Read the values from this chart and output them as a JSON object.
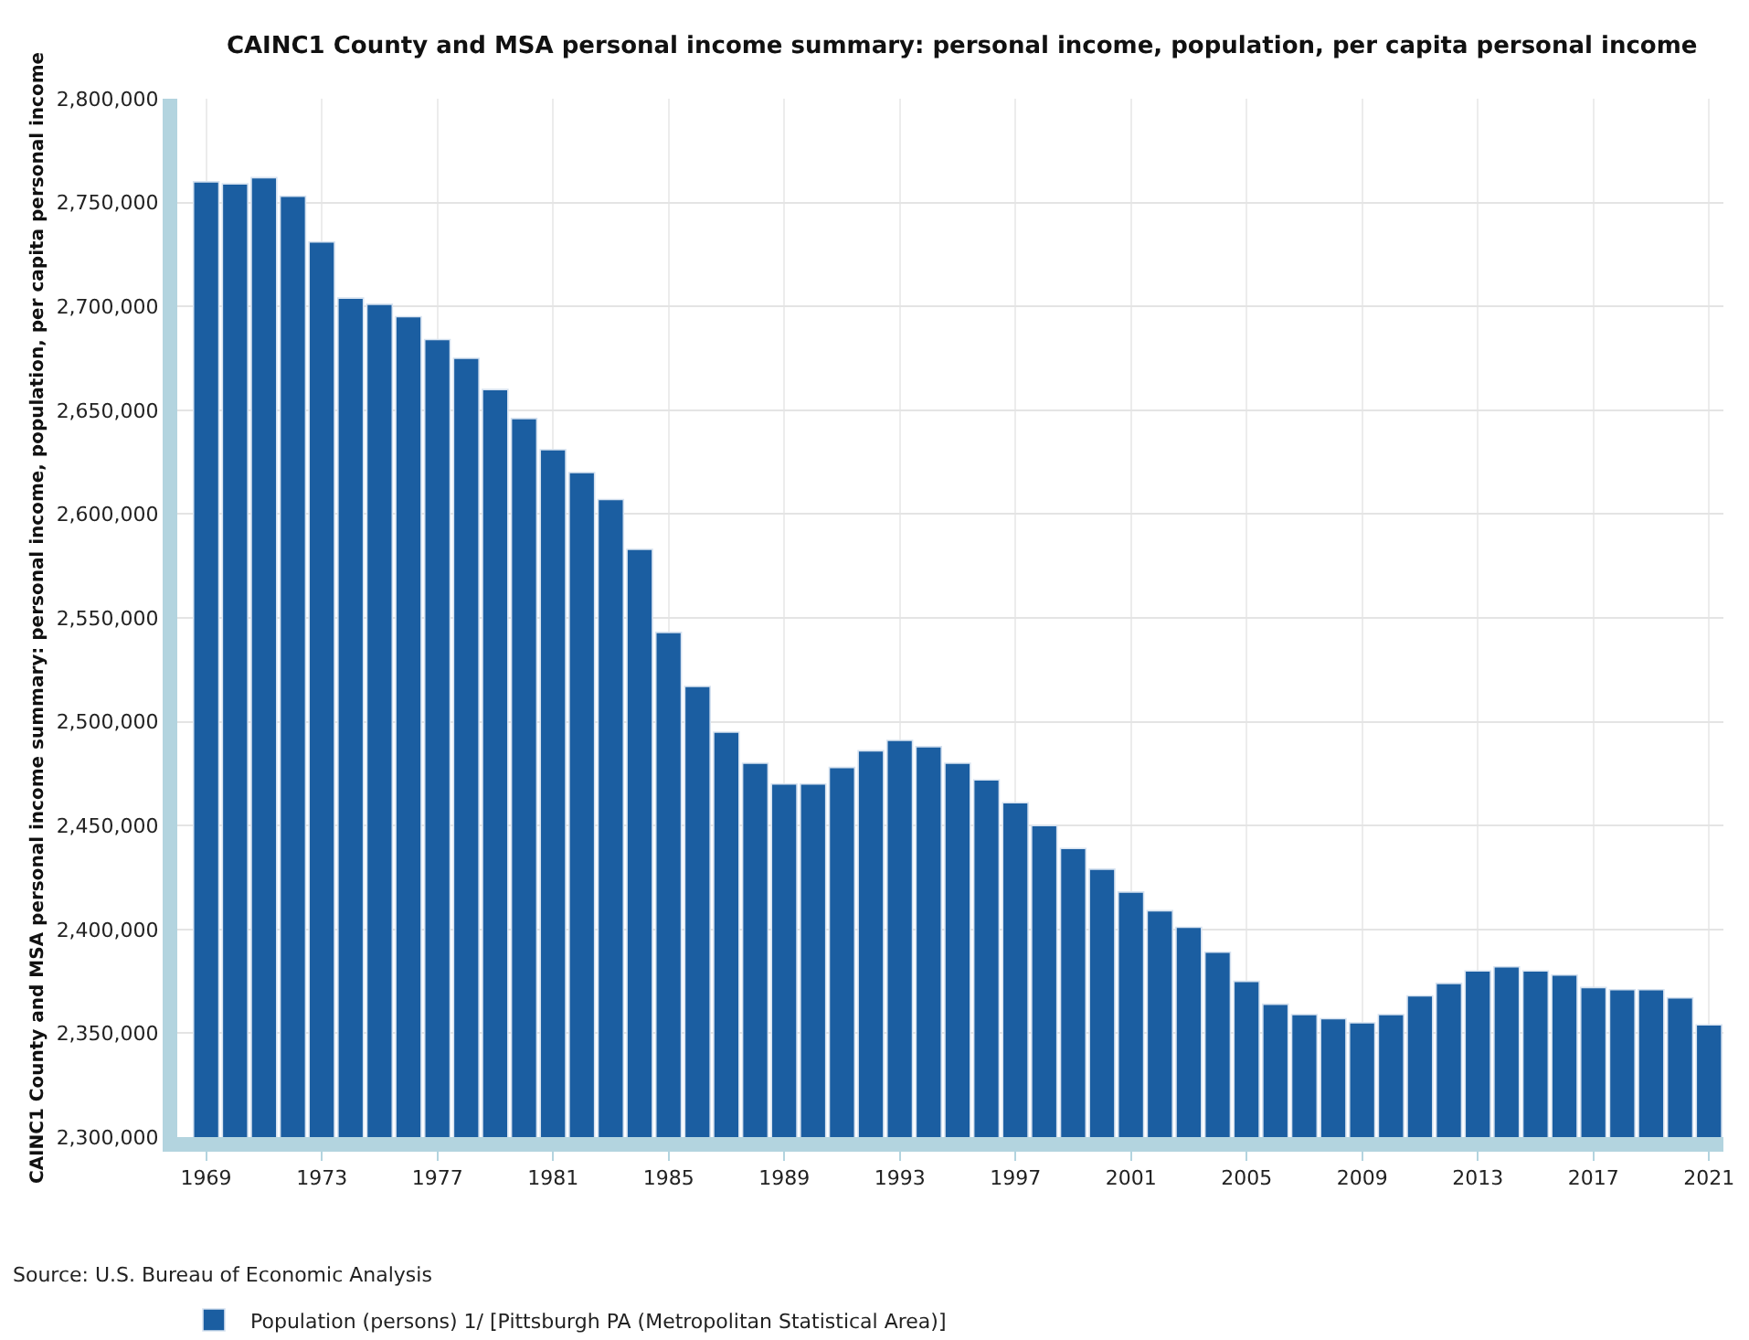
{
  "chart_data": {
    "type": "bar",
    "title": "CAINC1 County and MSA personal income summary: personal income, population, per capita personal income",
    "ylabel": "CAINC1 County and MSA personal income summary: personal income, population, per capita personal income",
    "x": [
      1969,
      1970,
      1971,
      1972,
      1973,
      1974,
      1975,
      1976,
      1977,
      1978,
      1979,
      1980,
      1981,
      1982,
      1983,
      1984,
      1985,
      1986,
      1987,
      1988,
      1989,
      1990,
      1991,
      1992,
      1993,
      1994,
      1995,
      1996,
      1997,
      1998,
      1999,
      2000,
      2001,
      2002,
      2003,
      2004,
      2005,
      2006,
      2007,
      2008,
      2009,
      2010,
      2011,
      2012,
      2013,
      2014,
      2015,
      2016,
      2017,
      2018,
      2019,
      2020,
      2021
    ],
    "series": [
      {
        "name": "Population (persons) 1/ [Pittsburgh PA (Metropolitan Statistical Area)]",
        "color": "#1b5ea1",
        "values": [
          2760000,
          2759000,
          2762000,
          2753000,
          2731000,
          2704000,
          2701000,
          2695000,
          2684000,
          2675000,
          2660000,
          2646000,
          2631000,
          2620000,
          2607000,
          2583000,
          2543000,
          2517000,
          2495000,
          2480000,
          2470000,
          2470000,
          2478000,
          2486000,
          2491000,
          2488000,
          2480000,
          2472000,
          2461000,
          2450000,
          2439000,
          2429000,
          2418000,
          2409000,
          2401000,
          2389000,
          2375000,
          2364000,
          2359000,
          2357000,
          2355000,
          2359000,
          2368000,
          2374000,
          2380000,
          2382000,
          2380000,
          2378000,
          2372000,
          2371000,
          2371000,
          2367000,
          2354000
        ]
      }
    ],
    "xlim": [
      1968,
      2021.5
    ],
    "xticks": [
      1969,
      1973,
      1977,
      1981,
      1985,
      1989,
      1993,
      1997,
      2001,
      2005,
      2009,
      2013,
      2017,
      2021
    ],
    "ylim": [
      2300000,
      2800000
    ],
    "yticks": [
      {
        "value": 2300000,
        "label": "2,300,000"
      },
      {
        "value": 2350000,
        "label": "2,350,000"
      },
      {
        "value": 2400000,
        "label": "2,400,000"
      },
      {
        "value": 2450000,
        "label": "2,450,000"
      },
      {
        "value": 2500000,
        "label": "2,500,000"
      },
      {
        "value": 2550000,
        "label": "2,550,000"
      },
      {
        "value": 2600000,
        "label": "2,600,000"
      },
      {
        "value": 2650000,
        "label": "2,650,000"
      },
      {
        "value": 2700000,
        "label": "2,700,000"
      },
      {
        "value": 2750000,
        "label": "2,750,000"
      },
      {
        "value": 2800000,
        "label": "2,800,000"
      }
    ],
    "grid": true,
    "legend": "bottom left",
    "annotations": [
      "Source: U.S. Bureau of Economic Analysis"
    ]
  }
}
